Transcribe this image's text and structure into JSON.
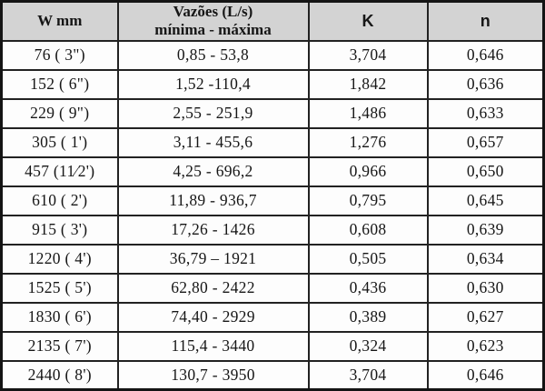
{
  "chart_data": {
    "type": "table",
    "columns": [
      "W mm",
      "Vazões (L/s) mínima - máxima",
      "K",
      "n"
    ],
    "rows": [
      [
        "76 ( 3\")",
        "0,85 - 53,8",
        "3,704",
        "0,646"
      ],
      [
        "152 ( 6\")",
        "1,52 -110,4",
        "1,842",
        "0,636"
      ],
      [
        "229 ( 9\")",
        "2,55 - 251,9",
        "1,486",
        "0,633"
      ],
      [
        "305 ( 1')",
        "3,11 - 455,6",
        "1,276",
        "0,657"
      ],
      [
        "457 (11⁄2')",
        "4,25 - 696,2",
        "0,966",
        "0,650"
      ],
      [
        "610 ( 2')",
        "11,89 - 936,7",
        "0,795",
        "0,645"
      ],
      [
        "915 ( 3')",
        "17,26 - 1426",
        "0,608",
        "0,639"
      ],
      [
        "1220 ( 4')",
        "36,79 – 1921",
        "0,505",
        "0,634"
      ],
      [
        "1525 ( 5')",
        "62,80 - 2422",
        "0,436",
        "0,630"
      ],
      [
        "1830 ( 6')",
        "74,40 - 2929",
        "0,389",
        "0,627"
      ],
      [
        "2135 ( 7')",
        "115,4 - 3440",
        "0,324",
        "0,623"
      ],
      [
        "2440 ( 8')",
        "130,7 - 3950",
        "3,704",
        "0,646"
      ]
    ],
    "layout": {
      "header_background": "#d3d3d3",
      "grid": "on",
      "text_align": "center"
    }
  },
  "header": {
    "col1": "W mm",
    "col2_line1": "Vazões (L/s)",
    "col2_line2": "mínima - máxima",
    "col3": "K",
    "col4": "n"
  },
  "colors": {
    "header_bg": "#d3d3d3",
    "border": "#141414",
    "text": "#161616",
    "body_bg": "#fdfdfd"
  }
}
